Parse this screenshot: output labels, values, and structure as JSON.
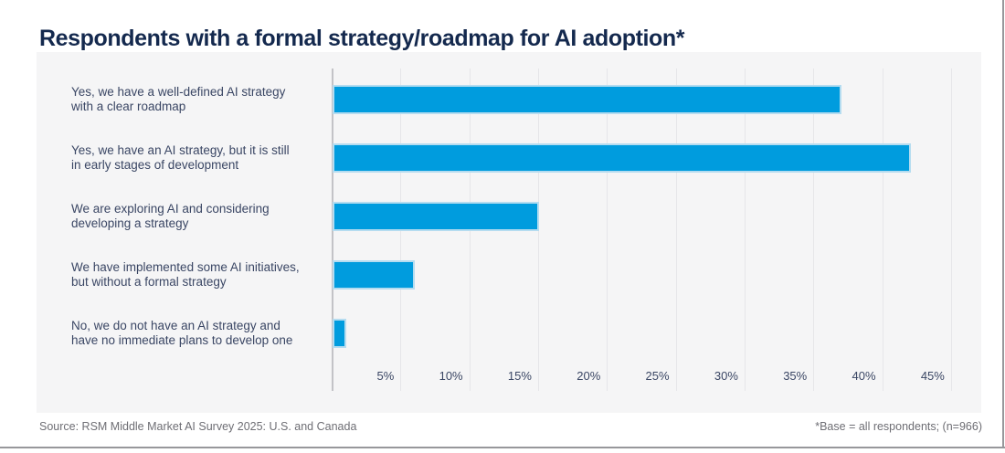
{
  "page": {
    "title": "Respondents with a formal strategy/roadmap for AI adoption*"
  },
  "footer": {
    "source": "Source: RSM Middle Market AI Survey 2025: U.S. and Canada",
    "base_note": "*Base = all respondents; (n=966)"
  },
  "colors": {
    "bar": "#009cde",
    "bar_border": "#b5dcf0",
    "title": "#14294e",
    "label": "#3a4664",
    "panel_bg": "#f5f5f6",
    "gridline": "#e6e6e9",
    "axis_line": "#c3c3c7",
    "footer_text": "#6e6e74",
    "page_border": "#97979b"
  },
  "chart_data": {
    "type": "bar",
    "orientation": "horizontal",
    "title": "Respondents with a formal strategy/roadmap for AI adoption*",
    "unit": "percent",
    "categories": [
      {
        "lines": [
          "Yes, we have a well-defined AI strategy",
          "with a clear roadmap"
        ]
      },
      {
        "lines": [
          "Yes, we have an AI strategy, but it is still",
          "in early stages of development"
        ]
      },
      {
        "lines": [
          "We are exploring AI and considering",
          "developing a strategy"
        ]
      },
      {
        "lines": [
          "We have implemented some AI initiatives,",
          "but without a formal strategy"
        ]
      },
      {
        "lines": [
          "No, we do not have an AI strategy and",
          "have no immediate plans to develop one"
        ]
      }
    ],
    "values": [
      37,
      42,
      15,
      6,
      1
    ],
    "xlabel": "",
    "ylabel": "",
    "xlim": [
      0,
      47.2
    ],
    "tick_values": [
      5,
      10,
      15,
      20,
      25,
      30,
      35,
      40,
      45
    ],
    "tick_labels": [
      "5%",
      "10%",
      "15%",
      "20%",
      "25%",
      "30%",
      "35%",
      "40%",
      "45%"
    ],
    "grid": true,
    "legend": false,
    "source": "Source: RSM Middle Market AI Survey 2025: U.S. and Canada",
    "note": "*Base = all respondents; (n=966)"
  }
}
